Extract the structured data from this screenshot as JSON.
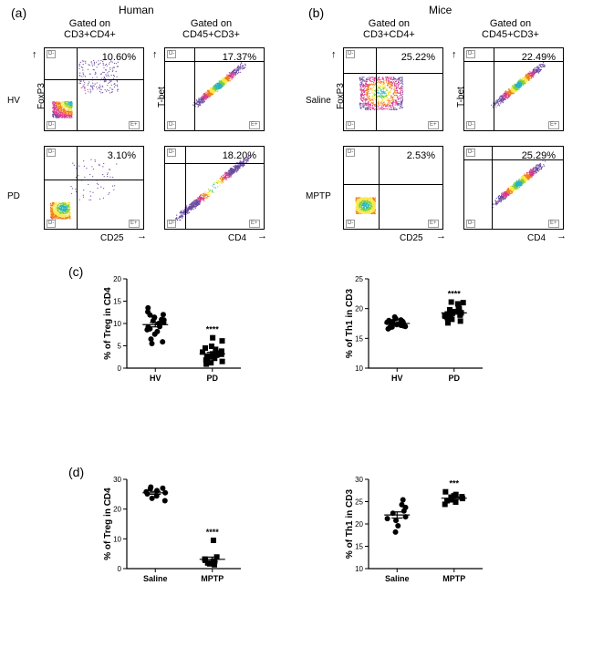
{
  "labels": {
    "a": "(a)",
    "b": "(b)",
    "c": "(c)",
    "d": "(d)",
    "human": "Human",
    "mice": "Mice",
    "gate_cd3cd4": "Gated on\nCD3+CD4+",
    "gate_cd45cd3": "Gated on\nCD45+CD3+",
    "hv": "HV",
    "pd": "PD",
    "saline": "Saline",
    "mptp": "MPTP",
    "foxp3": "FoxP3",
    "tbet": "T-bet",
    "cd25": "CD25",
    "cd4": "CD4"
  },
  "flow": {
    "quad_markers": {
      "ul": "D-",
      "ur": "D++",
      "ll": "D-",
      "lr": "E+"
    },
    "plots": {
      "hv_treg": {
        "pct": "10.60%",
        "density": "sparse-ur",
        "vsplit": 0.32,
        "hsplit": 0.62
      },
      "hv_th1": {
        "pct": "17.37%",
        "density": "diag-heavy",
        "vsplit": 0.3,
        "hsplit": 0.85
      },
      "pd_treg": {
        "pct": "3.10%",
        "density": "sparse-ll",
        "vsplit": 0.32,
        "hsplit": 0.6
      },
      "pd_th1": {
        "pct": "18.20%",
        "density": "diag-split",
        "vsplit": 0.2,
        "hsplit": 0.8
      },
      "sal_treg": {
        "pct": "25.22%",
        "density": "broad",
        "vsplit": 0.32,
        "hsplit": 0.7
      },
      "sal_th1": {
        "pct": "22.49%",
        "density": "diag-heavy",
        "vsplit": 0.3,
        "hsplit": 0.85
      },
      "mp_treg": {
        "pct": "2.53%",
        "density": "ll-tight",
        "vsplit": 0.35,
        "hsplit": 0.55
      },
      "mp_th1": {
        "pct": "25.29%",
        "density": "diag-heavy",
        "vsplit": 0.28,
        "hsplit": 0.85
      }
    },
    "density_palette": [
      "#6b4a9e",
      "#d83890",
      "#ef7f1a",
      "#f9e84b",
      "#7fd13b",
      "#2bb3c0"
    ]
  },
  "charts": {
    "style": {
      "marker_fill": "#000000",
      "marker_group1_shape": "circle",
      "marker_group2_shape": "square",
      "marker_size": 3.0,
      "axis_color": "#000000",
      "axis_width": 1.2,
      "err_cap": 6,
      "background": "#ffffff"
    },
    "c_treg": {
      "ytitle": "% of Treg in CD4",
      "ylim": [
        0,
        20
      ],
      "ytick_step": 5,
      "groups": [
        {
          "name": "HV",
          "shape": "circle",
          "values": [
            11.9,
            13.5,
            12.0,
            11.3,
            10.6,
            11.4,
            10.9,
            10.2,
            8.6,
            9.3,
            9.2,
            8.8,
            8.2,
            7.6,
            6.5,
            5.9,
            5.5,
            10.0,
            10.8,
            12.6
          ]
        },
        {
          "name": "PD",
          "shape": "square",
          "values": [
            6.8,
            6.1,
            4.9,
            3.8,
            3.6,
            3.4,
            3.2,
            3.1,
            2.9,
            2.7,
            2.6,
            2.5,
            2.2,
            2.0,
            1.8,
            1.5,
            1.2,
            4.2,
            4.5,
            0.9
          ]
        }
      ],
      "sig": "****"
    },
    "c_th1": {
      "ytitle": "% of Th1 in CD3",
      "ylim": [
        10,
        25
      ],
      "ytick_step": 5,
      "groups": [
        {
          "name": "HV",
          "shape": "circle",
          "values": [
            17.9,
            17.7,
            17.5,
            16.9,
            17.2,
            17.8,
            18.1,
            16.8,
            17.4,
            17.3,
            17.6,
            18.3,
            16.6,
            17.0,
            18.6,
            17.1,
            18.0,
            17.7,
            17.4,
            17.3
          ]
        },
        {
          "name": "PD",
          "shape": "square",
          "values": [
            18.8,
            19.3,
            19.0,
            19.6,
            18.4,
            20.2,
            18.2,
            19.1,
            18.5,
            21.1,
            17.9,
            19.5,
            18.7,
            20.8,
            19.8,
            21.0,
            17.6,
            18.9,
            19.2,
            20.0
          ]
        }
      ],
      "sig": "****"
    },
    "d_treg": {
      "ytitle": "% of Treg in CD4",
      "ylim": [
        0,
        30
      ],
      "ytick_step": 10,
      "groups": [
        {
          "name": "Saline",
          "shape": "circle",
          "values": [
            27.4,
            27.0,
            26.2,
            25.8,
            25.5,
            25.1,
            24.4,
            23.6,
            22.8,
            26.8
          ]
        },
        {
          "name": "MPTP",
          "shape": "square",
          "values": [
            9.5,
            3.9,
            2.8,
            2.5,
            2.4,
            2.1,
            1.9,
            1.6,
            1.3,
            3.2
          ]
        }
      ],
      "sig": "****"
    },
    "d_th1": {
      "ytitle": "% of Th1 in CD3",
      "ylim": [
        10,
        30
      ],
      "ytick_step": 5,
      "groups": [
        {
          "name": "Saline",
          "shape": "circle",
          "values": [
            25.4,
            24.3,
            23.7,
            22.9,
            22.4,
            21.6,
            20.8,
            19.6,
            18.2,
            21.2
          ]
        },
        {
          "name": "MPTP",
          "shape": "square",
          "values": [
            27.2,
            26.6,
            26.3,
            26.0,
            25.7,
            25.4,
            25.2,
            24.9,
            24.4,
            26.1
          ]
        }
      ],
      "sig": "***"
    }
  }
}
